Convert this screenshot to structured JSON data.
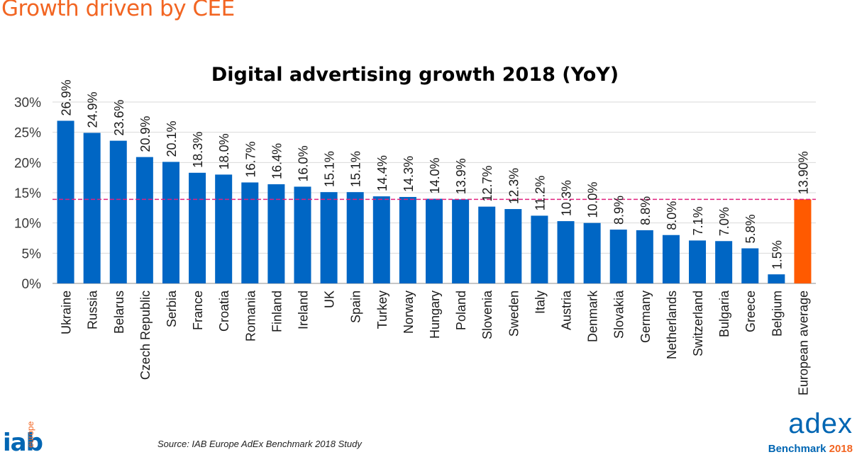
{
  "slide": {
    "title": "Growth driven by CEE",
    "source": "Source: IAB Europe AdEx Benchmark 2018 Study"
  },
  "logos": {
    "iab_main": "iab",
    "iab_sub": "europe",
    "adex_main": "adex",
    "adex_sub": "Benchmark",
    "adex_year": "2018"
  },
  "colors": {
    "bar": "#0066c4",
    "highlight_bar": "#ff5a00",
    "average_line": "#e0207e",
    "accent": "#f26522",
    "grid": "#d9d9d9"
  },
  "chart_data": {
    "type": "bar",
    "title": "Digital advertising growth 2018 (YoY)",
    "xlabel": "",
    "ylabel": "",
    "ylim": [
      0,
      30
    ],
    "yticks": [
      "0%",
      "5%",
      "10%",
      "15%",
      "20%",
      "25%",
      "30%"
    ],
    "grid": true,
    "categories": [
      "Ukraine",
      "Russia",
      "Belarus",
      "Czech Republic",
      "Serbia",
      "France",
      "Croatia",
      "Romania",
      "Finland",
      "Ireland",
      "UK",
      "Spain",
      "Turkey",
      "Norway",
      "Hungary",
      "Poland",
      "Slovenia",
      "Sweden",
      "Italy",
      "Austria",
      "Denmark",
      "Slovakia",
      "Germany",
      "Netherlands",
      "Switzerland",
      "Bulgaria",
      "Greece",
      "Belgium",
      "European average"
    ],
    "values": [
      26.9,
      24.9,
      23.6,
      20.9,
      20.1,
      18.3,
      18.0,
      16.7,
      16.4,
      16.0,
      15.1,
      15.1,
      14.4,
      14.3,
      14.0,
      13.9,
      12.7,
      12.3,
      11.2,
      10.3,
      10.0,
      8.9,
      8.8,
      8.0,
      7.1,
      7.0,
      5.8,
      1.5,
      13.9
    ],
    "data_labels": [
      "26.9%",
      "24.9%",
      "23.6%",
      "20.9%",
      "20.1%",
      "18.3%",
      "18.0%",
      "16.7%",
      "16.4%",
      "16.0%",
      "15.1%",
      "15.1%",
      "14.4%",
      "14.3%",
      "14.0%",
      "13.9%",
      "12.7%",
      "12.3%",
      "11.2%",
      "10.3%",
      "10.0%",
      "8.9%",
      "8.8%",
      "8.0%",
      "7.1%",
      "7.0%",
      "5.8%",
      "1.5%",
      "13.90%"
    ],
    "highlight_category": "European average",
    "average_line_value": 13.9
  }
}
